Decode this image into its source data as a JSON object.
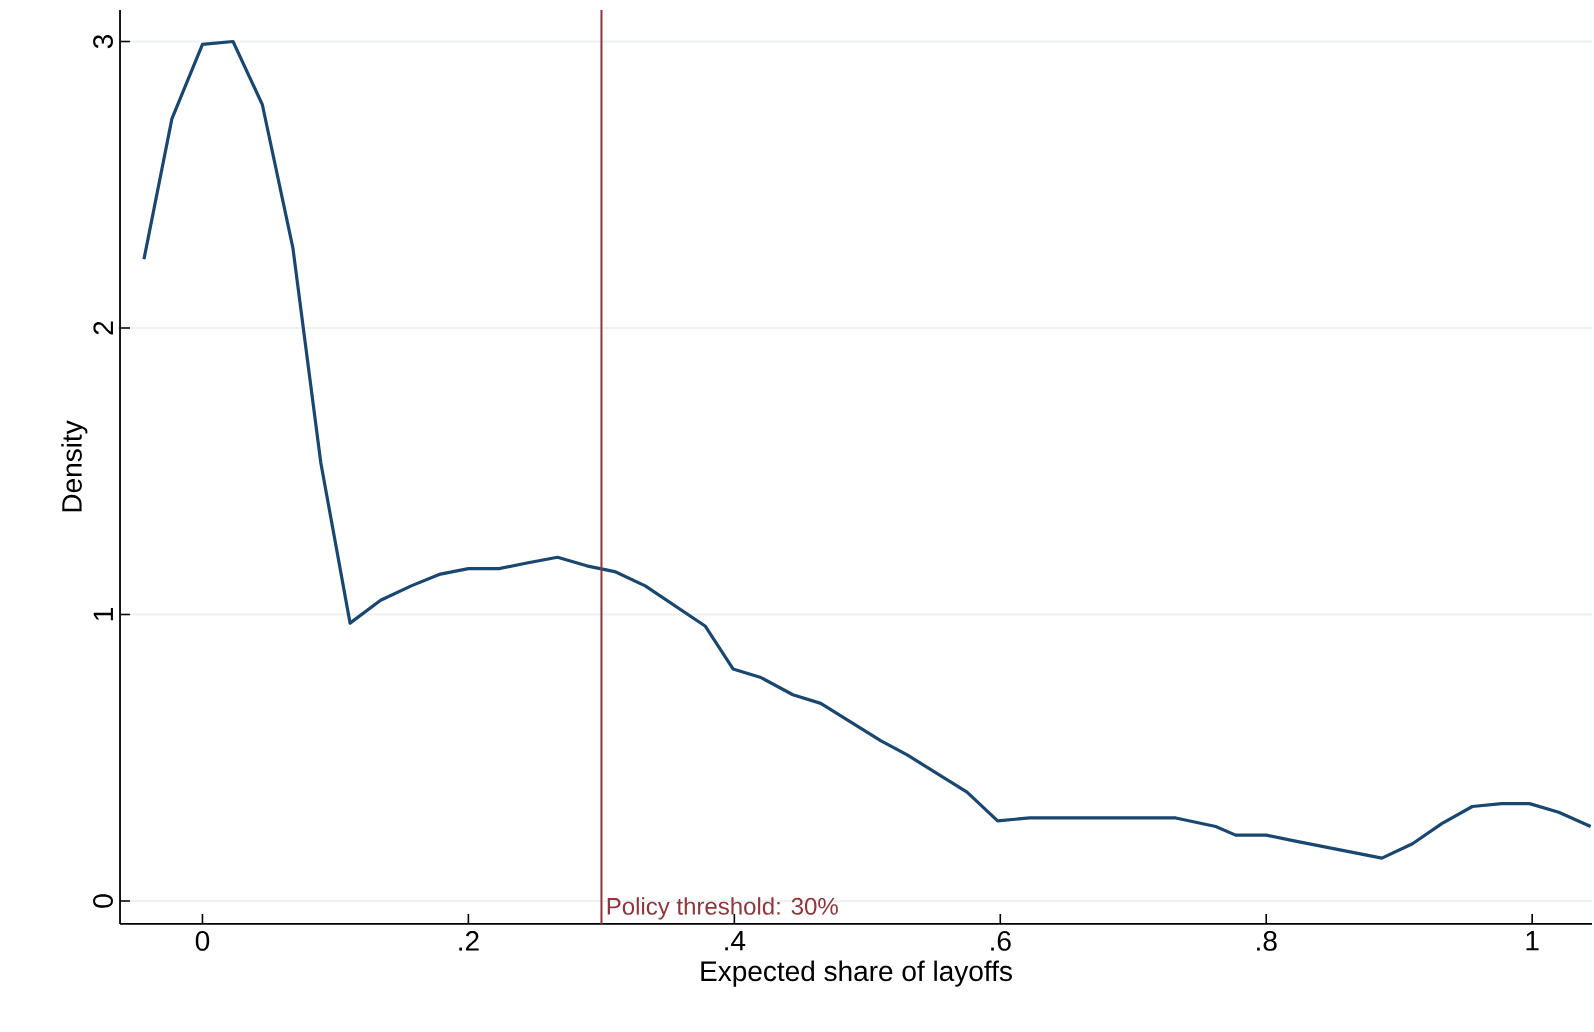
{
  "chart_data": {
    "type": "line",
    "xlabel": "Expected share of layoffs",
    "ylabel": "Density",
    "x": [
      -0.044,
      -0.023,
      0,
      0.023,
      0.045,
      0.068,
      0.089,
      0.111,
      0.134,
      0.157,
      0.178,
      0.2,
      0.223,
      0.244,
      0.267,
      0.289,
      0.31,
      0.333,
      0.378,
      0.399,
      0.42,
      0.444,
      0.465,
      0.51,
      0.53,
      0.575,
      0.598,
      0.622,
      0.661,
      0.732,
      0.762,
      0.777,
      0.8,
      0.821,
      0.887,
      0.91,
      0.932,
      0.955,
      0.977,
      0.998,
      1.02,
      1.044
    ],
    "series": [
      {
        "color": "#1a476f",
        "values": [
          2.24,
          2.73,
          2.99,
          3.0,
          2.78,
          2.28,
          1.53,
          0.97,
          1.05,
          1.1,
          1.14,
          1.16,
          1.16,
          1.18,
          1.2,
          1.17,
          1.15,
          1.1,
          0.96,
          0.81,
          0.78,
          0.72,
          0.69,
          0.56,
          0.51,
          0.38,
          0.28,
          0.29,
          0.29,
          0.29,
          0.26,
          0.23,
          0.23,
          0.21,
          0.15,
          0.2,
          0.27,
          0.33,
          0.34,
          0.34,
          0.31,
          0.26
        ]
      }
    ],
    "xlim": [
      -0.062,
      1.045
    ],
    "ylim": [
      -0.08,
      3.11
    ],
    "xticks": [
      0,
      {
        "value": 0.2,
        "label": ".2"
      },
      {
        "value": 0.4,
        "label": ".4"
      },
      {
        "value": 0.6,
        "label": ".6"
      },
      {
        "value": 0.8,
        "label": ".8"
      },
      1
    ],
    "yticks": [
      0,
      1,
      2,
      3
    ],
    "grid": "y",
    "marker": "none",
    "line_style": "solid",
    "ref_lines": [
      {
        "axis": "x",
        "value": 0.3,
        "label": "Policy threshold: 30%",
        "color": "#90353b"
      }
    ]
  }
}
